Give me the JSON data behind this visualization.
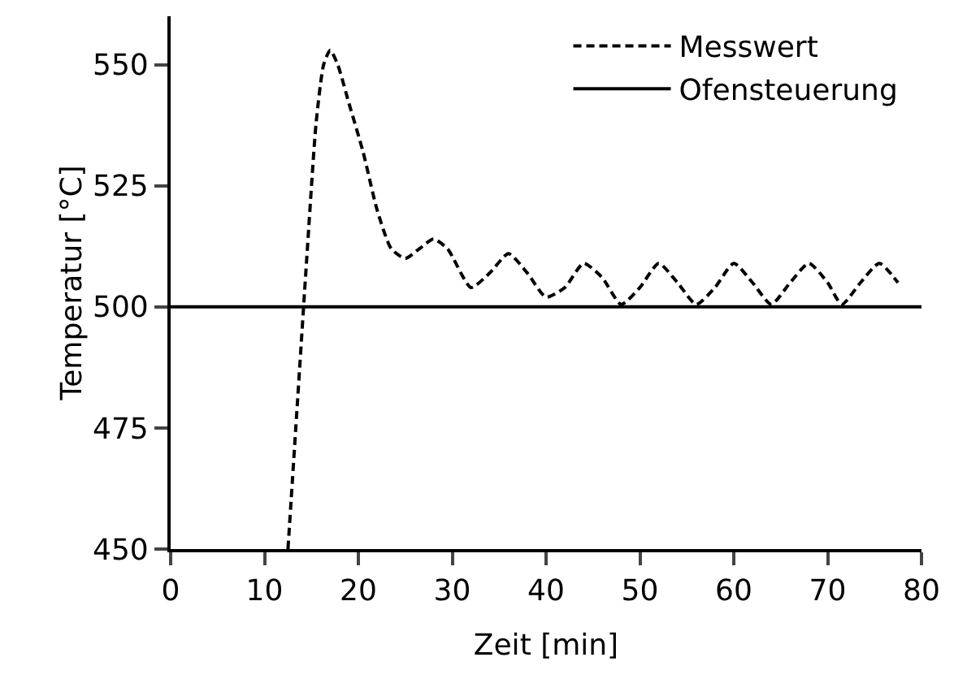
{
  "chart_data": {
    "type": "line",
    "xlabel": "Zeit [min]",
    "ylabel": "Temperatur [°C]",
    "xlim": [
      0,
      80
    ],
    "xticks": [
      0,
      10,
      20,
      30,
      40,
      50,
      60,
      70,
      80
    ],
    "ylim": [
      450,
      560
    ],
    "yticks": [
      450,
      475,
      500,
      525,
      550
    ],
    "grid": false,
    "legend": "top right",
    "marker": "none",
    "series": [
      {
        "name": "Messwert",
        "color": "#000000",
        "line_style": "dashed",
        "x": [
          12.5,
          13.5,
          14.5,
          15.5,
          16.3,
          17,
          17.8,
          19,
          20.5,
          22,
          23.5,
          25,
          26.5,
          28,
          29.5,
          32,
          34,
          36,
          38,
          40,
          42,
          44,
          46,
          48,
          50,
          52,
          54,
          56,
          58,
          60,
          62,
          64,
          66,
          68,
          70,
          71.5,
          73.5,
          75.5,
          77.5
        ],
        "values": [
          450,
          480,
          510,
          538,
          550,
          553,
          550,
          542,
          532,
          520,
          512,
          510,
          512,
          514,
          512,
          504,
          507,
          511,
          507,
          502,
          504,
          509,
          506,
          500.5,
          504,
          509,
          505,
          500.5,
          504,
          509,
          505,
          500.5,
          505,
          509,
          505,
          500.5,
          505,
          509,
          505
        ]
      },
      {
        "name": "Ofensteuerung",
        "color": "#000000",
        "line_style": "solid",
        "x": [
          0,
          80
        ],
        "values": [
          500,
          500
        ]
      }
    ]
  }
}
